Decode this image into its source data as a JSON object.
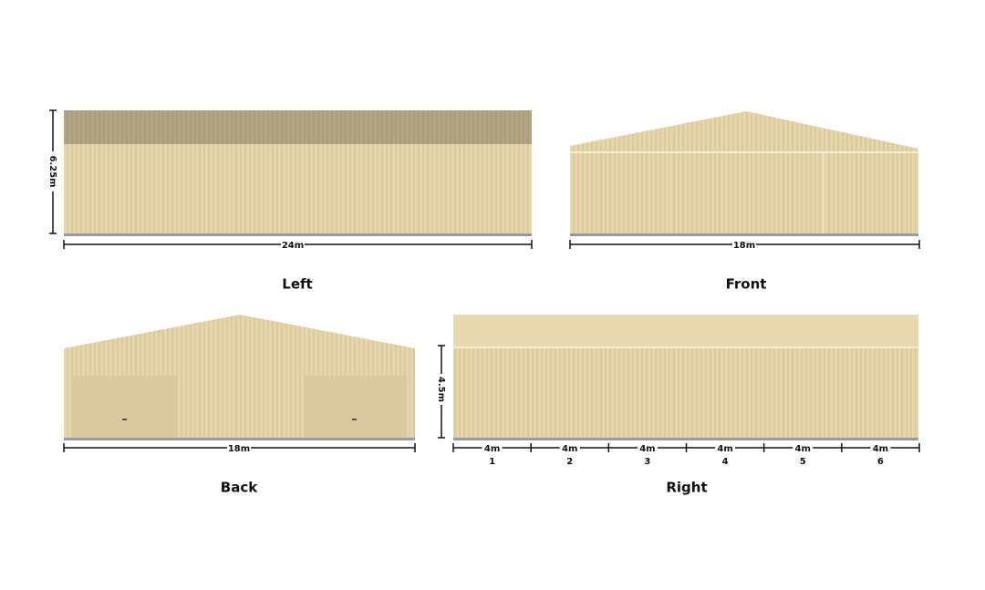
{
  "views": {
    "left": {
      "title": "Left",
      "width_label": "24m",
      "height_label": "6.25m"
    },
    "front": {
      "title": "Front",
      "width_label": "18m"
    },
    "back": {
      "title": "Back",
      "width_label": "18m"
    },
    "right": {
      "title": "Right",
      "height_label": "4.5m",
      "bays": [
        {
          "width": "4m",
          "number": "1"
        },
        {
          "width": "4m",
          "number": "2"
        },
        {
          "width": "4m",
          "number": "3"
        },
        {
          "width": "4m",
          "number": "4"
        },
        {
          "width": "4m",
          "number": "5"
        },
        {
          "width": "4m",
          "number": "6"
        }
      ]
    }
  }
}
